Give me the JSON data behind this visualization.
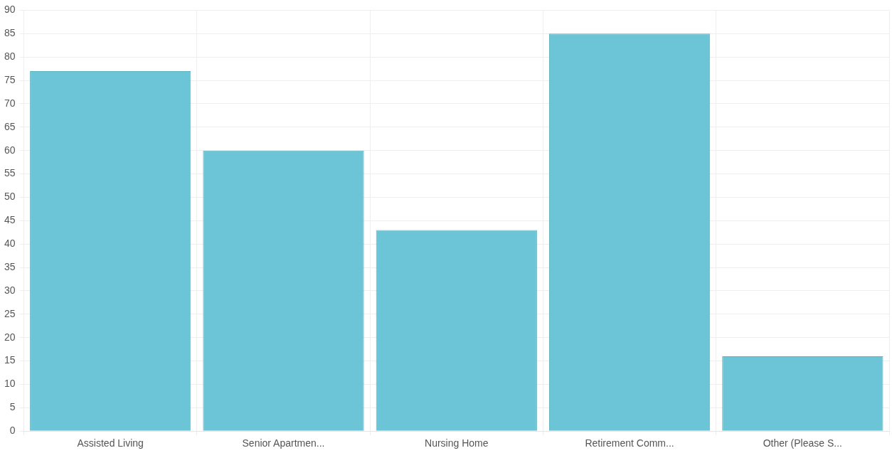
{
  "chart_data": {
    "type": "bar",
    "categories": [
      "Assisted Living",
      "Senior Apartmen...",
      "Nursing Home",
      "Retirement Comm...",
      "Other (Please S..."
    ],
    "values": [
      77,
      60,
      43,
      85,
      16
    ],
    "color": "#6cc5d6",
    "ylim": [
      0,
      90
    ],
    "yticks": [
      0,
      5,
      10,
      15,
      20,
      25,
      30,
      35,
      40,
      45,
      50,
      55,
      60,
      65,
      70,
      75,
      80,
      85,
      90
    ],
    "grid": true
  }
}
